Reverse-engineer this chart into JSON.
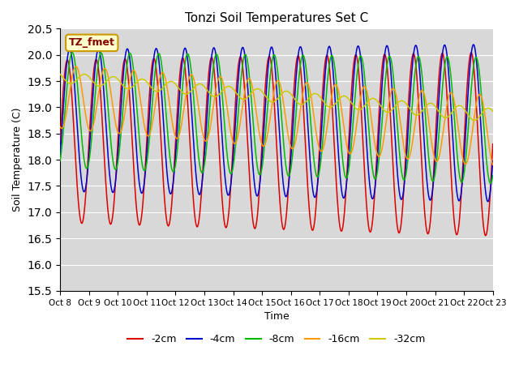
{
  "title": "Tonzi Soil Temperatures Set C",
  "xlabel": "Time",
  "ylabel": "Soil Temperature (C)",
  "ylim": [
    15.5,
    20.5
  ],
  "xlim": [
    0,
    15
  ],
  "xtick_labels": [
    "Oct 8",
    "Oct 9",
    "Oct 10",
    "Oct 11",
    "Oct 12",
    "Oct 13",
    "Oct 14",
    "Oct 15",
    "Oct 16",
    "Oct 17",
    "Oct 18",
    "Oct 19",
    "Oct 20",
    "Oct 21",
    "Oct 22",
    "Oct 23"
  ],
  "annotation_text": "TZ_fmet",
  "annotation_bg": "#ffffcc",
  "annotation_border": "#cc9900",
  "bg_color": "#d8d8d8",
  "legend_colors": [
    "#dd0000",
    "#0000cc",
    "#00bb00",
    "#ff9900",
    "#cccc00"
  ],
  "legend_labels": [
    "-2cm",
    "-4cm",
    "-8cm",
    "-16cm",
    "-32cm"
  ]
}
